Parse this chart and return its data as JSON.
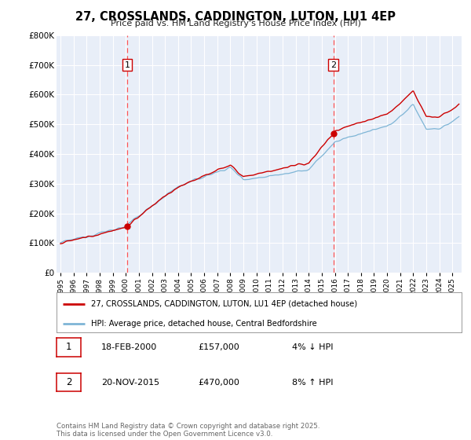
{
  "title": "27, CROSSLANDS, CADDINGTON, LUTON, LU1 4EP",
  "subtitle": "Price paid vs. HM Land Registry's House Price Index (HPI)",
  "legend_line1": "27, CROSSLANDS, CADDINGTON, LUTON, LU1 4EP (detached house)",
  "legend_line2": "HPI: Average price, detached house, Central Bedfordshire",
  "sale1_label": "1",
  "sale1_date": "18-FEB-2000",
  "sale1_price": "£157,000",
  "sale1_pct": "4% ↓ HPI",
  "sale1_year": 2000.12,
  "sale1_value": 157000,
  "sale2_label": "2",
  "sale2_date": "20-NOV-2015",
  "sale2_price": "£470,000",
  "sale2_pct": "8% ↑ HPI",
  "sale2_year": 2015.89,
  "sale2_value": 470000,
  "footer": "Contains HM Land Registry data © Crown copyright and database right 2025.\nThis data is licensed under the Open Government Licence v3.0.",
  "background_color": "#ffffff",
  "plot_bg_color": "#e8eef8",
  "red_color": "#cc0000",
  "blue_color": "#7eb5d6",
  "grid_color": "#ffffff",
  "dashed_line_color": "#ff5555",
  "ylim": [
    0,
    800000
  ],
  "xlim_start": 1994.7,
  "xlim_end": 2025.7
}
